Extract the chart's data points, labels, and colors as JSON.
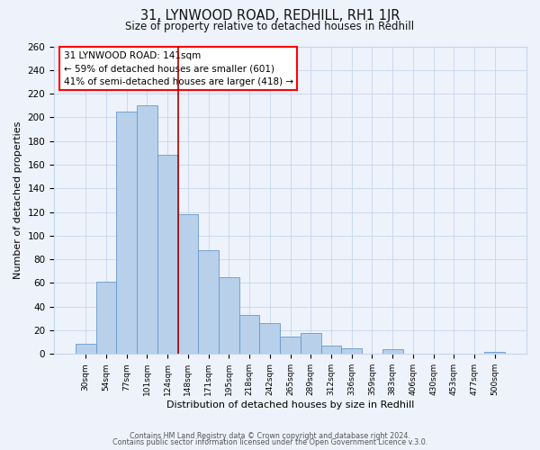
{
  "title1": "31, LYNWOOD ROAD, REDHILL, RH1 1JR",
  "title2": "Size of property relative to detached houses in Redhill",
  "xlabel": "Distribution of detached houses by size in Redhill",
  "ylabel": "Number of detached properties",
  "bin_labels": [
    "30sqm",
    "54sqm",
    "77sqm",
    "101sqm",
    "124sqm",
    "148sqm",
    "171sqm",
    "195sqm",
    "218sqm",
    "242sqm",
    "265sqm",
    "289sqm",
    "312sqm",
    "336sqm",
    "359sqm",
    "383sqm",
    "406sqm",
    "430sqm",
    "453sqm",
    "477sqm",
    "500sqm"
  ],
  "bar_values": [
    9,
    61,
    205,
    210,
    168,
    118,
    88,
    65,
    33,
    26,
    15,
    18,
    7,
    5,
    0,
    4,
    0,
    0,
    0,
    0,
    2
  ],
  "bar_color": "#b8d0ea",
  "bar_edge_color": "#6699cc",
  "annotation_title": "31 LYNWOOD ROAD: 141sqm",
  "annotation_line1": "← 59% of detached houses are smaller (601)",
  "annotation_line2": "41% of semi-detached houses are larger (418) →",
  "footer1": "Contains HM Land Registry data © Crown copyright and database right 2024.",
  "footer2": "Contains public sector information licensed under the Open Government Licence v.3.0.",
  "bg_color": "#eef2fb",
  "grid_color": "#c5d5ee",
  "ylim": [
    0,
    260
  ],
  "vline_bin_index": 5
}
